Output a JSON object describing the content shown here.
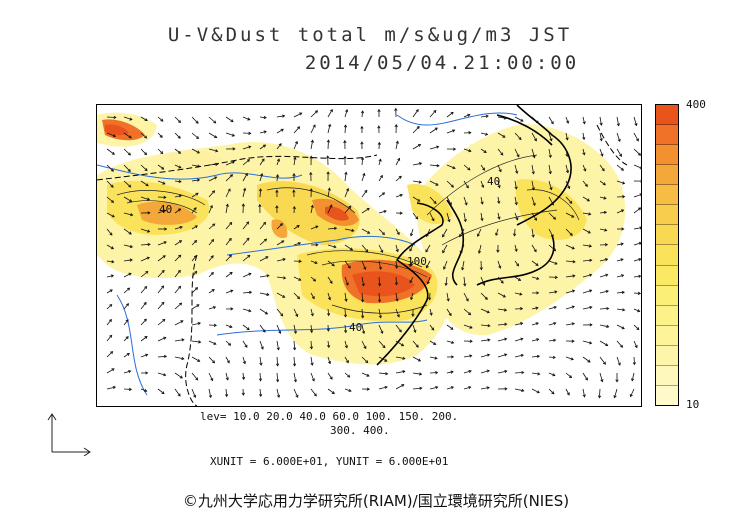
{
  "title": {
    "line1": "U-V&Dust total m/s&ug/m3 JST",
    "line2": "2014/05/04.21:00:00"
  },
  "colorbar": {
    "max_label": "400",
    "min_label": "10",
    "colors": [
      "#e8541c",
      "#ef7228",
      "#f39030",
      "#f5a83a",
      "#f7bc44",
      "#f8cc4c",
      "#f9d852",
      "#fae25a",
      "#fbe964",
      "#fcef78",
      "#fcf28a",
      "#fdf49a",
      "#fdf6aa",
      "#fef8ba",
      "#fefaca"
    ]
  },
  "contour_labels": [
    "40",
    "40",
    "40",
    "100"
  ],
  "legend": {
    "levels_line1": "lev= 10.0 20.0 40.0 60.0 100. 150. 200.",
    "levels_line2": "300. 400.",
    "units": "XUNIT = 6.000E+01, YUNIT = 6.000E+01"
  },
  "copyright": "©九州大学応用力学研究所(RIAM)/国立環境研究所(NIES)"
}
